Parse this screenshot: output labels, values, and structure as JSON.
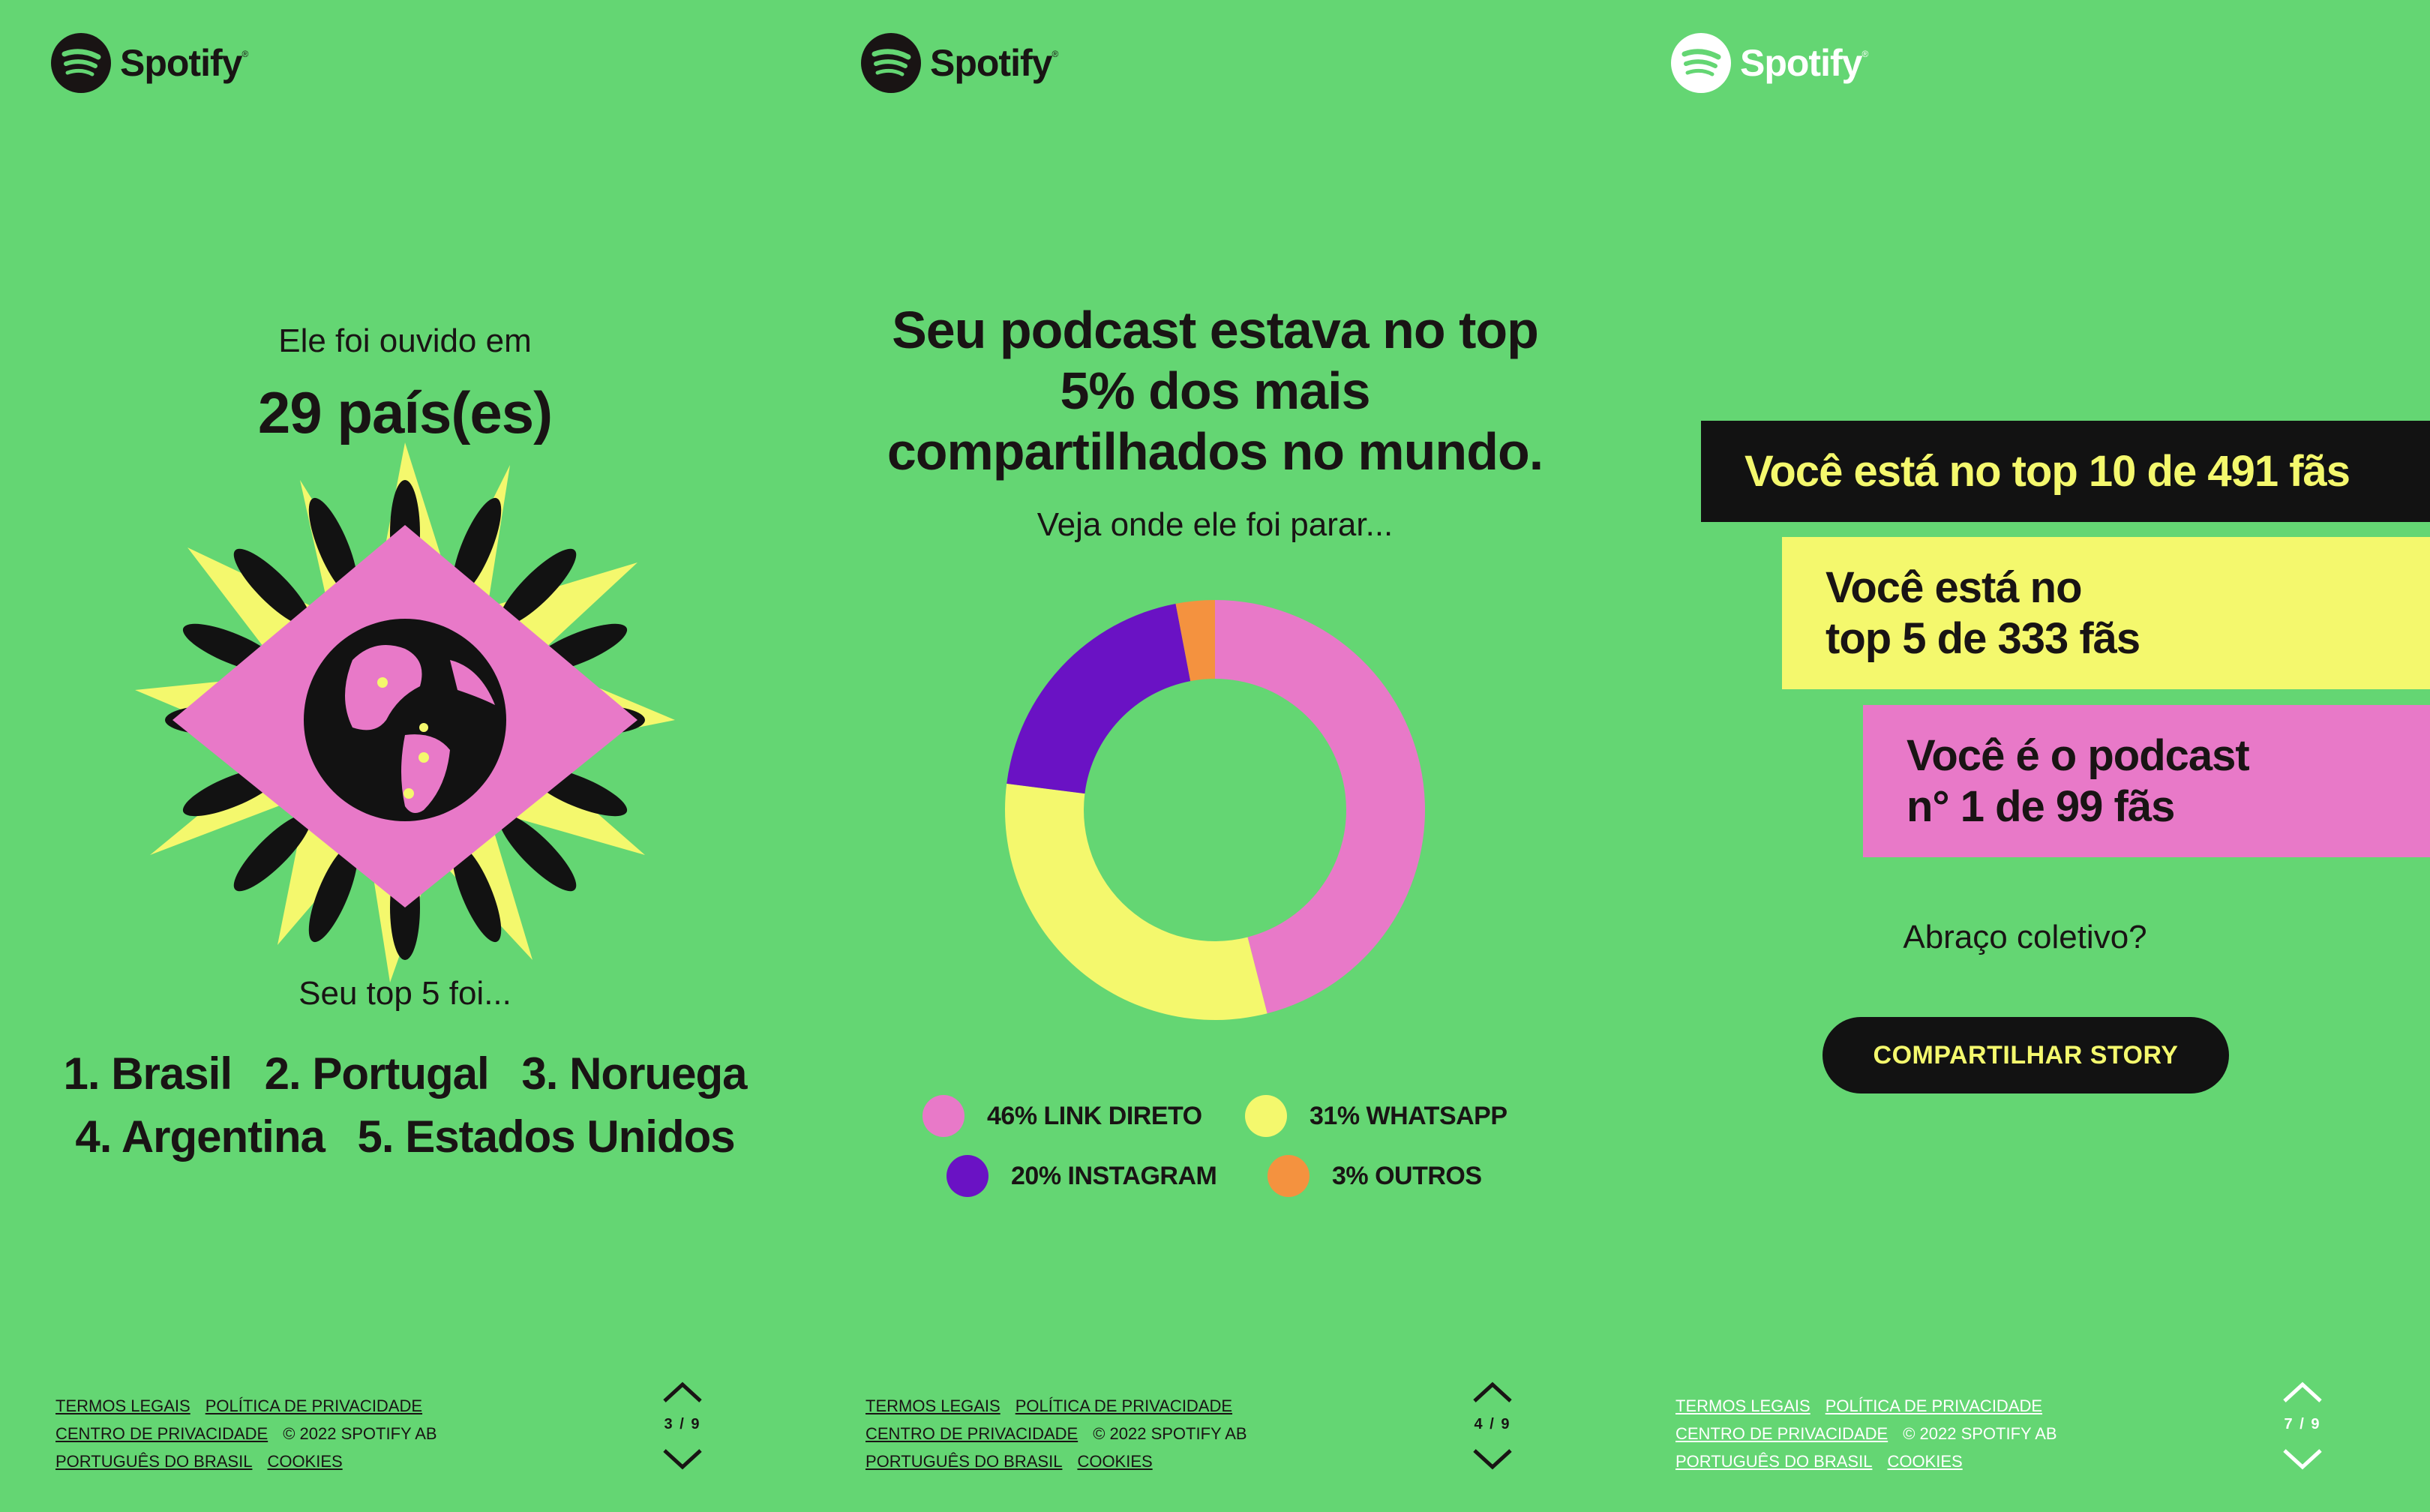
{
  "brand": {
    "name": "Spotify",
    "reg": "®"
  },
  "colors": {
    "green": "#64d673",
    "black": "#121212",
    "yellow": "#f4f86d",
    "pink": "#e879c8",
    "purple": "#6a12c4",
    "orange": "#f4923f"
  },
  "panels": [
    {
      "intro": "Ele foi ouvido em",
      "headline": "29 país(es)",
      "top_label": "Seu top 5 foi...",
      "top_countries_row1": [
        "1. Brasil",
        "2. Portugal",
        "3. Noruega"
      ],
      "top_countries_row2": [
        "4. Argentina",
        "5. Estados Unidos"
      ],
      "page": "3 / 9"
    },
    {
      "title": "Seu podcast estava no top 5% dos mais compartilhados no mundo.",
      "subtitle": "Veja onde ele foi parar...",
      "page": "4 / 9"
    },
    {
      "box1": "Você está no top 10 de 491 fãs",
      "box2_line1": "Você está no",
      "box2_line2": "top 5 de 333 fãs",
      "box3_line1": "Você é o podcast",
      "box3_line2": "n° 1 de 99 fãs",
      "question": "Abraço coletivo?",
      "share_button": "COMPARTILHAR STORY",
      "page": "7 / 9"
    }
  ],
  "chart_data": {
    "type": "pie",
    "donut": true,
    "categories": [
      "LINK DIRETO",
      "WHATSAPP",
      "INSTAGRAM",
      "OUTROS"
    ],
    "values": [
      46,
      31,
      20,
      3
    ],
    "legend_labels": [
      "46% LINK DIRETO",
      "31% WHATSAPP",
      "20% INSTAGRAM",
      "3% OUTROS"
    ],
    "colors": [
      "#e879c8",
      "#f4f86d",
      "#6a12c4",
      "#f4923f"
    ],
    "legend_position": "bottom"
  },
  "footer": {
    "terms": "TERMOS LEGAIS",
    "privacy_policy": "POLÍTICA DE PRIVACIDADE",
    "privacy_center": "CENTRO DE PRIVACIDADE",
    "copyright": "© 2022 SPOTIFY AB",
    "language": "PORTUGUÊS DO BRASIL",
    "cookies": "COOKIES"
  },
  "icons": {
    "logo": "spotify-logo-icon",
    "up": "chevron-up-icon",
    "down": "chevron-down-icon",
    "globe": "globe-icon"
  }
}
